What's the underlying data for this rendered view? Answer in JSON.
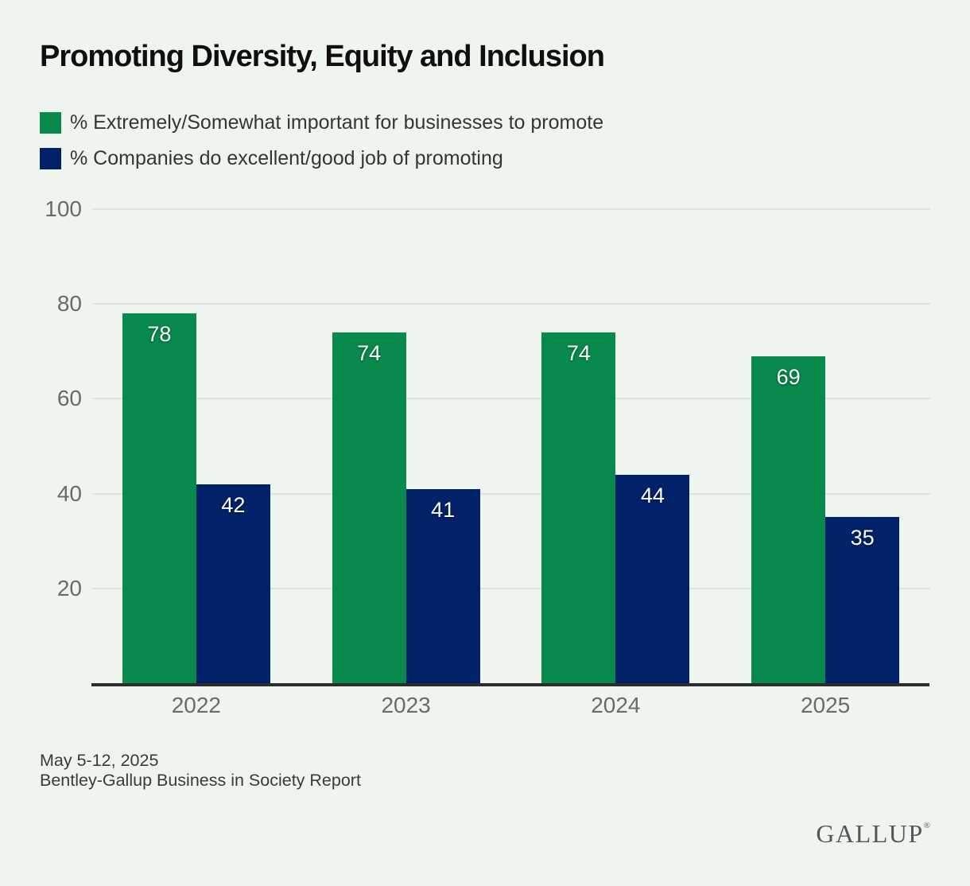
{
  "title": "Promoting Diversity, Equity and Inclusion",
  "legend": {
    "items": [
      {
        "label": "% Extremely/Somewhat important for businesses to promote",
        "color": "#088a4c"
      },
      {
        "label": "% Companies do excellent/good job of promoting",
        "color": "#012169"
      }
    ]
  },
  "chart_data": {
    "type": "bar",
    "title": "Promoting Diversity, Equity and Inclusion",
    "categories": [
      "2022",
      "2023",
      "2024",
      "2025"
    ],
    "series": [
      {
        "name": "% Extremely/Somewhat important for businesses to promote",
        "color": "#088a4c",
        "values": [
          78,
          74,
          74,
          69
        ]
      },
      {
        "name": "% Companies do excellent/good job of promoting",
        "color": "#012169",
        "values": [
          42,
          41,
          44,
          35
        ]
      }
    ],
    "xlabel": "",
    "ylabel": "",
    "ylim": [
      0,
      100
    ],
    "yticks": [
      20,
      40,
      60,
      80,
      100
    ],
    "grid": true,
    "legend_position": "top-left",
    "bar_value_labels": true
  },
  "footer": {
    "date_range": "May 5-12, 2025",
    "source": "Bentley-Gallup Business in Society Report"
  },
  "brand": {
    "logo_text": "GALLUP",
    "registered_mark": "®"
  },
  "colors": {
    "background": "#eef5ef",
    "gridline": "#dde4dd",
    "axis_line": "#2d2d2d",
    "tick_text": "#6a6a6a",
    "title_text": "#0f0f0f",
    "bar_label_text": "#ffffff"
  }
}
